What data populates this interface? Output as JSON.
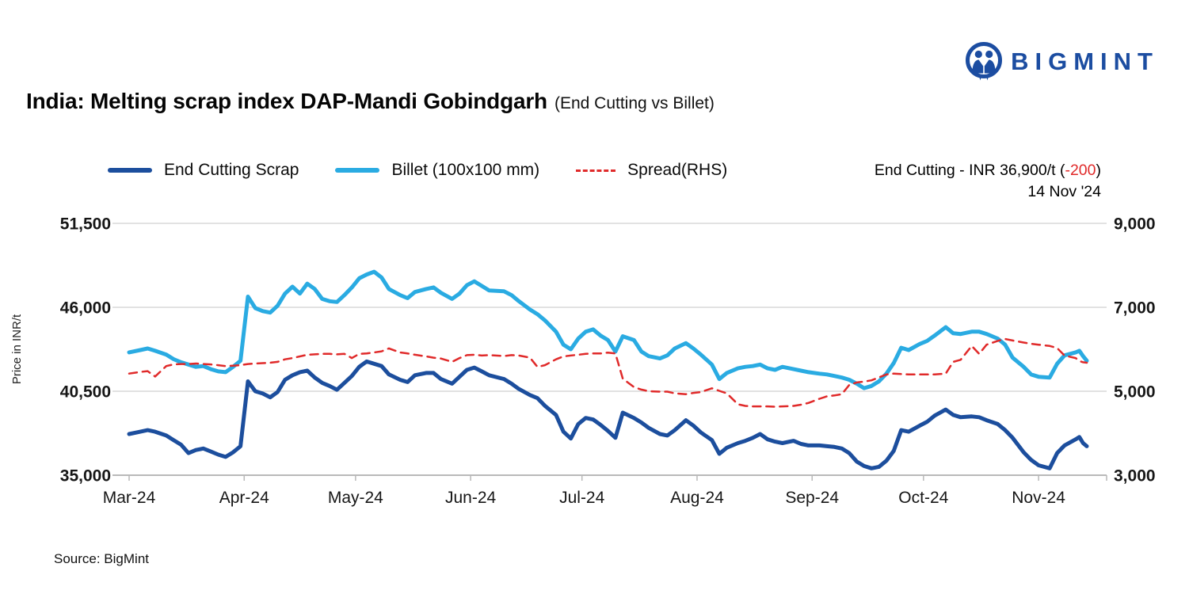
{
  "logo": {
    "text": "BIGMINT",
    "color": "#1c4da1"
  },
  "header": {
    "title": "India: Melting scrap index DAP-Mandi Gobindgarh",
    "subtitle": "(End Cutting vs Billet)"
  },
  "legend": [
    {
      "label": "End Cutting Scrap",
      "color": "#1c4e9d",
      "style": "solid"
    },
    {
      "label": "Billet (100x100 mm)",
      "color": "#2aabe2",
      "style": "solid"
    },
    {
      "label": "Spread(RHS)",
      "color": "#e02a2a",
      "style": "dashed"
    }
  ],
  "annotation": {
    "prefix": "End Cutting - INR 36,900/t (",
    "change": "-200",
    "suffix": ")",
    "date": "14 Nov '24",
    "change_color": "#e02a2a"
  },
  "source": "Source: BigMint",
  "chart_data": {
    "type": "line",
    "title": "India: Melting scrap index DAP-Mandi Gobindgarh (End Cutting vs Billet)",
    "grid": "horizontal",
    "legend_position": "top",
    "y_left": {
      "label": "Price in INR/t",
      "range": [
        35000,
        51500
      ],
      "tick_values": [
        51500,
        46000,
        40500,
        35000
      ],
      "tick_labels": [
        "51,500",
        "46,000",
        "40,500",
        "35,000"
      ]
    },
    "y_right": {
      "label": "",
      "range": [
        3000,
        9000
      ],
      "tick_values": [
        9000,
        7000,
        5000,
        3000
      ],
      "tick_labels": [
        "9,000",
        "7,000",
        "5,000",
        "3,000"
      ]
    },
    "x_ticks": [
      {
        "label": "Mar-24",
        "date": "2024-03-01"
      },
      {
        "label": "Apr-24",
        "date": "2024-04-01"
      },
      {
        "label": "May-24",
        "date": "2024-05-01"
      },
      {
        "label": "Jun-24",
        "date": "2024-06-01"
      },
      {
        "label": "Jul-24",
        "date": "2024-07-01"
      },
      {
        "label": "Aug-24",
        "date": "2024-08-01"
      },
      {
        "label": "Sep-24",
        "date": "2024-09-01"
      },
      {
        "label": "Oct-24",
        "date": "2024-10-01"
      },
      {
        "label": "Nov-24",
        "date": "2024-11-01"
      }
    ],
    "dates": [
      "2024-03-01",
      "2024-03-04",
      "2024-03-06",
      "2024-03-08",
      "2024-03-11",
      "2024-03-13",
      "2024-03-15",
      "2024-03-17",
      "2024-03-19",
      "2024-03-21",
      "2024-03-23",
      "2024-03-25",
      "2024-03-27",
      "2024-03-29",
      "2024-03-31",
      "2024-04-02",
      "2024-04-04",
      "2024-04-06",
      "2024-04-08",
      "2024-04-10",
      "2024-04-12",
      "2024-04-14",
      "2024-04-16",
      "2024-04-18",
      "2024-04-20",
      "2024-04-22",
      "2024-04-24",
      "2024-04-26",
      "2024-04-28",
      "2024-04-30",
      "2024-05-02",
      "2024-05-04",
      "2024-05-06",
      "2024-05-08",
      "2024-05-10",
      "2024-05-13",
      "2024-05-15",
      "2024-05-17",
      "2024-05-20",
      "2024-05-22",
      "2024-05-24",
      "2024-05-27",
      "2024-05-29",
      "2024-05-31",
      "2024-06-02",
      "2024-06-04",
      "2024-06-06",
      "2024-06-10",
      "2024-06-12",
      "2024-06-14",
      "2024-06-17",
      "2024-06-19",
      "2024-06-21",
      "2024-06-24",
      "2024-06-26",
      "2024-06-28",
      "2024-06-30",
      "2024-07-02",
      "2024-07-04",
      "2024-07-06",
      "2024-07-08",
      "2024-07-10",
      "2024-07-12",
      "2024-07-15",
      "2024-07-17",
      "2024-07-19",
      "2024-07-22",
      "2024-07-24",
      "2024-07-26",
      "2024-07-29",
      "2024-07-31",
      "2024-08-02",
      "2024-08-05",
      "2024-08-07",
      "2024-08-09",
      "2024-08-12",
      "2024-08-14",
      "2024-08-16",
      "2024-08-18",
      "2024-08-20",
      "2024-08-22",
      "2024-08-24",
      "2024-08-27",
      "2024-08-29",
      "2024-08-31",
      "2024-09-03",
      "2024-09-05",
      "2024-09-07",
      "2024-09-09",
      "2024-09-11",
      "2024-09-13",
      "2024-09-15",
      "2024-09-17",
      "2024-09-19",
      "2024-09-21",
      "2024-09-23",
      "2024-09-25",
      "2024-09-27",
      "2024-09-30",
      "2024-10-02",
      "2024-10-04",
      "2024-10-07",
      "2024-10-09",
      "2024-10-11",
      "2024-10-14",
      "2024-10-16",
      "2024-10-18",
      "2024-10-21",
      "2024-10-23",
      "2024-10-25",
      "2024-10-28",
      "2024-10-30",
      "2024-11-01",
      "2024-11-04",
      "2024-11-06",
      "2024-11-08",
      "2024-11-11",
      "2024-11-12",
      "2024-11-13",
      "2024-11-14"
    ],
    "series": [
      {
        "name": "End Cutting Scrap",
        "axis": "left",
        "color": "#1c4e9d",
        "dash": false,
        "width": 5,
        "values": [
          37700,
          37850,
          37950,
          37850,
          37600,
          37300,
          37000,
          36450,
          36650,
          36750,
          36550,
          36350,
          36200,
          36500,
          36900,
          41150,
          40500,
          40350,
          40100,
          40450,
          41250,
          41550,
          41750,
          41850,
          41400,
          41050,
          40850,
          40600,
          41050,
          41500,
          42100,
          42450,
          42300,
          42150,
          41600,
          41250,
          41100,
          41550,
          41700,
          41700,
          41300,
          41000,
          41450,
          41900,
          42050,
          41800,
          41550,
          41300,
          41000,
          40650,
          40250,
          40050,
          39550,
          38950,
          37850,
          37400,
          38350,
          38750,
          38650,
          38300,
          37900,
          37450,
          39100,
          38750,
          38450,
          38100,
          37700,
          37600,
          37950,
          38600,
          38250,
          37800,
          37300,
          36400,
          36800,
          37100,
          37250,
          37450,
          37700,
          37350,
          37200,
          37100,
          37250,
          37050,
          36950,
          36950,
          36900,
          36850,
          36750,
          36450,
          35900,
          35600,
          35450,
          35550,
          35950,
          36600,
          37950,
          37850,
          38250,
          38500,
          38900,
          39300,
          38950,
          38800,
          38850,
          38800,
          38600,
          38350,
          37950,
          37450,
          36500,
          36000,
          35650,
          35450,
          36450,
          36950,
          37350,
          37500,
          37100,
          36900
        ]
      },
      {
        "name": "Billet (100x100 mm)",
        "axis": "left",
        "color": "#2aabe2",
        "dash": false,
        "width": 5,
        "values": [
          43050,
          43200,
          43300,
          43150,
          42900,
          42600,
          42400,
          42250,
          42100,
          42150,
          41950,
          41800,
          41750,
          42100,
          42500,
          46700,
          45950,
          45750,
          45650,
          46100,
          46900,
          47350,
          46900,
          47550,
          47200,
          46550,
          46400,
          46350,
          46800,
          47300,
          47900,
          48150,
          48330,
          47950,
          47200,
          46800,
          46600,
          47000,
          47200,
          47300,
          46950,
          46550,
          46900,
          47450,
          47700,
          47400,
          47100,
          47050,
          46800,
          46400,
          45850,
          45550,
          45150,
          44400,
          43550,
          43250,
          43950,
          44400,
          44550,
          44150,
          43850,
          43100,
          44100,
          43850,
          43100,
          42800,
          42650,
          42850,
          43300,
          43650,
          43300,
          42900,
          42250,
          41300,
          41700,
          42000,
          42100,
          42150,
          42250,
          42000,
          41900,
          42100,
          41950,
          41850,
          41750,
          41650,
          41600,
          41500,
          41400,
          41250,
          41000,
          40700,
          40850,
          41150,
          41650,
          42350,
          43350,
          43200,
          43600,
          43800,
          44150,
          44700,
          44300,
          44250,
          44400,
          44400,
          44250,
          43950,
          43550,
          42700,
          42100,
          41600,
          41450,
          41400,
          42300,
          42850,
          43050,
          43150,
          42800,
          42500
        ]
      },
      {
        "name": "Spread(RHS)",
        "axis": "right",
        "color": "#e02a2a",
        "dash": true,
        "width": 2.5,
        "values": [
          5420,
          5460,
          5480,
          5350,
          5600,
          5640,
          5650,
          5650,
          5660,
          5650,
          5640,
          5620,
          5600,
          5610,
          5620,
          5650,
          5660,
          5670,
          5680,
          5700,
          5760,
          5790,
          5830,
          5870,
          5880,
          5890,
          5890,
          5880,
          5890,
          5790,
          5890,
          5900,
          5925,
          5950,
          6020,
          5925,
          5900,
          5870,
          5830,
          5800,
          5780,
          5700,
          5790,
          5860,
          5870,
          5850,
          5860,
          5840,
          5860,
          5850,
          5800,
          5580,
          5620,
          5760,
          5830,
          5850,
          5870,
          5890,
          5900,
          5900,
          5920,
          5900,
          5300,
          5100,
          5040,
          5000,
          4990,
          4990,
          4950,
          4930,
          4960,
          4980,
          5070,
          5010,
          4950,
          4690,
          4650,
          4640,
          4640,
          4640,
          4630,
          4640,
          4650,
          4680,
          4720,
          4820,
          4880,
          4900,
          4930,
          5150,
          5210,
          5230,
          5260,
          5330,
          5400,
          5420,
          5410,
          5400,
          5400,
          5400,
          5400,
          5420,
          5700,
          5750,
          6080,
          5890,
          6110,
          6200,
          6245,
          6210,
          6160,
          6130,
          6110,
          6080,
          6030,
          5850,
          5790,
          5720,
          5690,
          5680
        ]
      }
    ]
  }
}
